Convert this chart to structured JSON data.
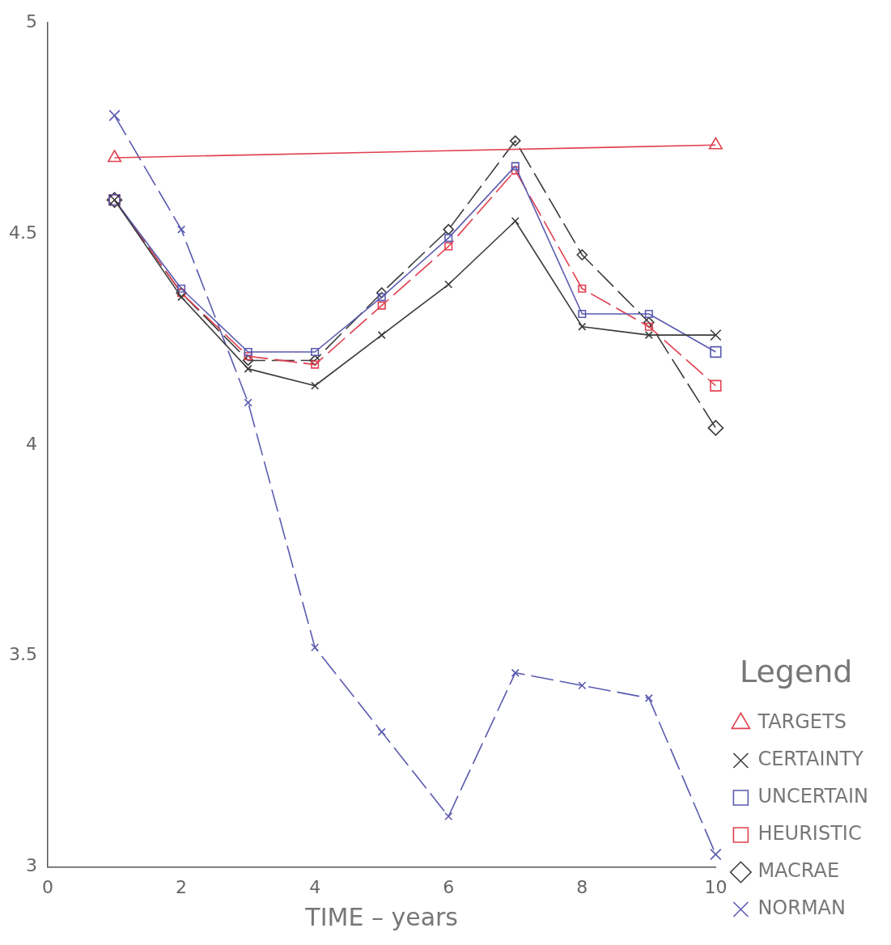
{
  "chart_data": {
    "type": "line",
    "xlabel": "TIME – years",
    "legend_title": "Legend",
    "x": [
      1,
      2,
      3,
      4,
      5,
      6,
      7,
      8,
      9,
      10
    ],
    "xlim": [
      0,
      10
    ],
    "xticks": [
      0,
      2,
      4,
      6,
      8,
      10
    ],
    "ylim": [
      3,
      5
    ],
    "yticks": [
      3,
      3.5,
      4,
      4.5,
      5
    ],
    "grid": false,
    "legend": "bottom right",
    "series": [
      {
        "name": "TARGETS",
        "color": "#e0404f",
        "marker": "triangle",
        "line_style": "solid",
        "x": [
          1,
          10
        ],
        "values": [
          4.68,
          4.71
        ]
      },
      {
        "name": "CERTAINTY",
        "color": "#3a3a3a",
        "marker": "cross",
        "line_style": "solid",
        "values": [
          4.58,
          4.35,
          4.18,
          4.14,
          4.26,
          4.38,
          4.53,
          4.28,
          4.26,
          4.26
        ]
      },
      {
        "name": "UNCERTAIN",
        "color": "#5a5ab0",
        "marker": "square",
        "line_style": "solid",
        "values": [
          4.58,
          4.37,
          4.22,
          4.22,
          4.35,
          4.49,
          4.66,
          4.31,
          4.31,
          4.22
        ]
      },
      {
        "name": "HEURISTIC",
        "color": "#e0404f",
        "marker": "square",
        "line_style": "dashed",
        "values": [
          4.58,
          4.36,
          4.21,
          4.19,
          4.33,
          4.47,
          4.65,
          4.37,
          4.28,
          4.14
        ]
      },
      {
        "name": "MACRAE",
        "color": "#3a3a3a",
        "marker": "diamond",
        "line_style": "dashed",
        "values": [
          4.58,
          4.36,
          4.2,
          4.2,
          4.36,
          4.51,
          4.72,
          4.45,
          4.29,
          4.04
        ]
      },
      {
        "name": "NORMAN",
        "color": "#5a5ab0",
        "marker": "cross",
        "line_style": "dashed",
        "values": [
          4.78,
          4.51,
          4.1,
          3.52,
          3.32,
          3.12,
          3.46,
          3.43,
          3.4,
          3.03
        ]
      }
    ]
  }
}
